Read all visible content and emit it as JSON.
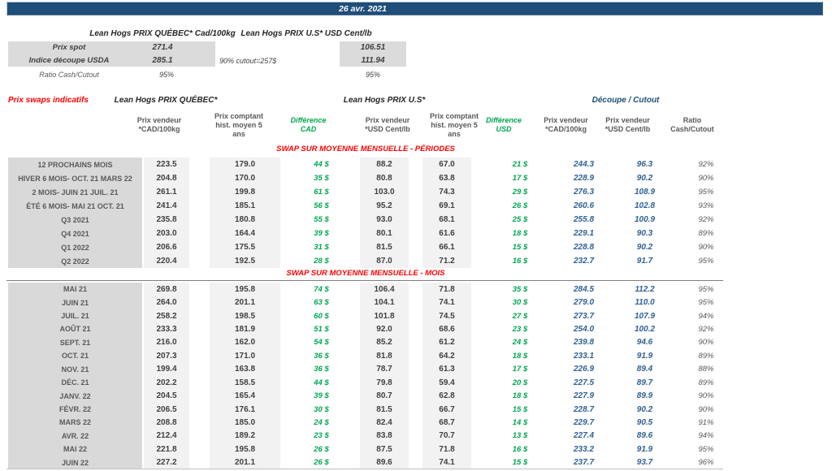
{
  "title_bar": {
    "date": "26 avr. 2021"
  },
  "spot": {
    "qc_header": "Lean Hogs PRIX QUÉBEC* Cad/100kg",
    "us_header": "Lean Hogs PRIX U.S* USD Cent/lb",
    "rows": [
      {
        "label": "Prix spot",
        "qc": "271.4",
        "us": "106.51"
      },
      {
        "label": "Indice découpe USDA",
        "qc": "285.1",
        "us": "111.94"
      }
    ],
    "note": "90% cutout=257$",
    "ratio": {
      "label": "Ratio Cash/Cutout",
      "qc": "95%",
      "us": "95%"
    }
  },
  "swaps": {
    "title": "Prix swaps indicatifs",
    "groups": {
      "qc": "Lean Hogs PRIX QUÉBEC*",
      "us": "Lean Hogs PRIX U.S*",
      "cutout": "Découpe / Cutout"
    },
    "columns": [
      "Prix vendeur *CAD/100kg",
      "Prix comptant hist. moyen 5 ans",
      "Différence CAD",
      "Prix vendeur *USD Cent/lb",
      "Prix comptant hist. moyen 5 ans",
      "Différence USD",
      "Prix vendeur *CAD/100kg",
      "Prix vendeur *USD Cent/lb",
      "Ratio Cash/Cutout"
    ],
    "sections": [
      {
        "header": "SWAP SUR MOYENNE MENSUELLE - PÉRIODES",
        "rows": [
          {
            "label": "12 PROCHAINS MOIS",
            "cells": [
              "223.5",
              "179.0",
              "44 $",
              "88.2",
              "67.0",
              "21 $",
              "244.3",
              "96.3",
              "92%"
            ]
          },
          {
            "label": "HIVER 6 MOIS- OCT. 21 MARS 22",
            "cells": [
              "204.8",
              "170.0",
              "35 $",
              "80.8",
              "63.8",
              "17 $",
              "228.9",
              "90.2",
              "90%"
            ]
          },
          {
            "label": "2 MOIS- JUIN 21 JUIL. 21",
            "cells": [
              "261.1",
              "199.8",
              "61 $",
              "103.0",
              "74.3",
              "29 $",
              "276.3",
              "108.9",
              "95%"
            ]
          },
          {
            "label": "ÉTÉ 6 MOIS- MAI 21 OCT. 21",
            "cells": [
              "241.4",
              "185.1",
              "56 $",
              "95.2",
              "69.1",
              "26 $",
              "260.6",
              "102.8",
              "93%"
            ]
          },
          {
            "label": "Q3 2021",
            "cells": [
              "235.8",
              "180.8",
              "55 $",
              "93.0",
              "68.1",
              "25 $",
              "255.8",
              "100.9",
              "92%"
            ]
          },
          {
            "label": "Q4 2021",
            "cells": [
              "203.0",
              "164.4",
              "39 $",
              "80.1",
              "61.6",
              "18 $",
              "229.1",
              "90.3",
              "89%"
            ]
          },
          {
            "label": "Q1 2022",
            "cells": [
              "206.6",
              "175.5",
              "31 $",
              "81.5",
              "66.1",
              "15 $",
              "228.8",
              "90.2",
              "90%"
            ]
          },
          {
            "label": "Q2 2022",
            "cells": [
              "220.4",
              "192.5",
              "28 $",
              "87.0",
              "71.2",
              "16 $",
              "232.7",
              "91.7",
              "95%"
            ]
          }
        ]
      },
      {
        "header": "SWAP SUR MOYENNE MENSUELLE - MOIS",
        "rows": [
          {
            "label": "MAI 21",
            "cells": [
              "269.8",
              "195.8",
              "74 $",
              "106.4",
              "71.8",
              "35 $",
              "284.5",
              "112.2",
              "95%"
            ]
          },
          {
            "label": "JUIN 21",
            "cells": [
              "264.0",
              "201.1",
              "63 $",
              "104.1",
              "74.1",
              "30 $",
              "279.0",
              "110.0",
              "95%"
            ]
          },
          {
            "label": "JUIL. 21",
            "cells": [
              "258.2",
              "198.5",
              "60 $",
              "101.8",
              "74.5",
              "27 $",
              "273.7",
              "107.9",
              "94%"
            ]
          },
          {
            "label": "AOÛT 21",
            "cells": [
              "233.3",
              "181.9",
              "51 $",
              "92.0",
              "68.6",
              "23 $",
              "254.0",
              "100.2",
              "92%"
            ]
          },
          {
            "label": "SEPT. 21",
            "cells": [
              "216.0",
              "162.0",
              "54 $",
              "85.2",
              "61.2",
              "24 $",
              "239.8",
              "94.6",
              "90%"
            ]
          },
          {
            "label": "OCT. 21",
            "cells": [
              "207.3",
              "171.0",
              "36 $",
              "81.8",
              "64.2",
              "18 $",
              "233.1",
              "91.9",
              "89%"
            ]
          },
          {
            "label": "NOV. 21",
            "cells": [
              "199.4",
              "163.8",
              "36 $",
              "78.7",
              "61.3",
              "17 $",
              "226.9",
              "89.4",
              "88%"
            ]
          },
          {
            "label": "DÉC. 21",
            "cells": [
              "202.2",
              "158.5",
              "44 $",
              "79.8",
              "59.4",
              "20 $",
              "227.5",
              "89.7",
              "89%"
            ]
          },
          {
            "label": "JANV. 22",
            "cells": [
              "204.5",
              "165.4",
              "39 $",
              "80.7",
              "62.8",
              "18 $",
              "227.9",
              "89.9",
              "90%"
            ]
          },
          {
            "label": "FÉVR. 22",
            "cells": [
              "206.5",
              "176.1",
              "30 $",
              "81.5",
              "66.7",
              "15 $",
              "228.7",
              "90.2",
              "90%"
            ]
          },
          {
            "label": "MARS 22",
            "cells": [
              "208.8",
              "185.0",
              "24 $",
              "82.4",
              "68.7",
              "14 $",
              "229.7",
              "90.5",
              "91%"
            ]
          },
          {
            "label": "AVR. 22",
            "cells": [
              "212.4",
              "189.2",
              "23 $",
              "83.8",
              "70.7",
              "13 $",
              "227.4",
              "89.6",
              "94%"
            ]
          },
          {
            "label": "MAI 22",
            "cells": [
              "221.8",
              "195.8",
              "26 $",
              "87.5",
              "71.8",
              "16 $",
              "233.2",
              "91.9",
              "95%"
            ]
          },
          {
            "label": "JUIN 22",
            "cells": [
              "227.2",
              "201.1",
              "26 $",
              "89.6",
              "74.1",
              "15 $",
              "237.7",
              "93.7",
              "96%"
            ]
          }
        ]
      }
    ]
  },
  "colors": {
    "navy": "#1F4E79",
    "red": "#FF0000",
    "green": "#00A651",
    "blue_values": "#2E5F96",
    "label_grey": "#D9D9D9",
    "band_grey": "#F2F2F2"
  }
}
